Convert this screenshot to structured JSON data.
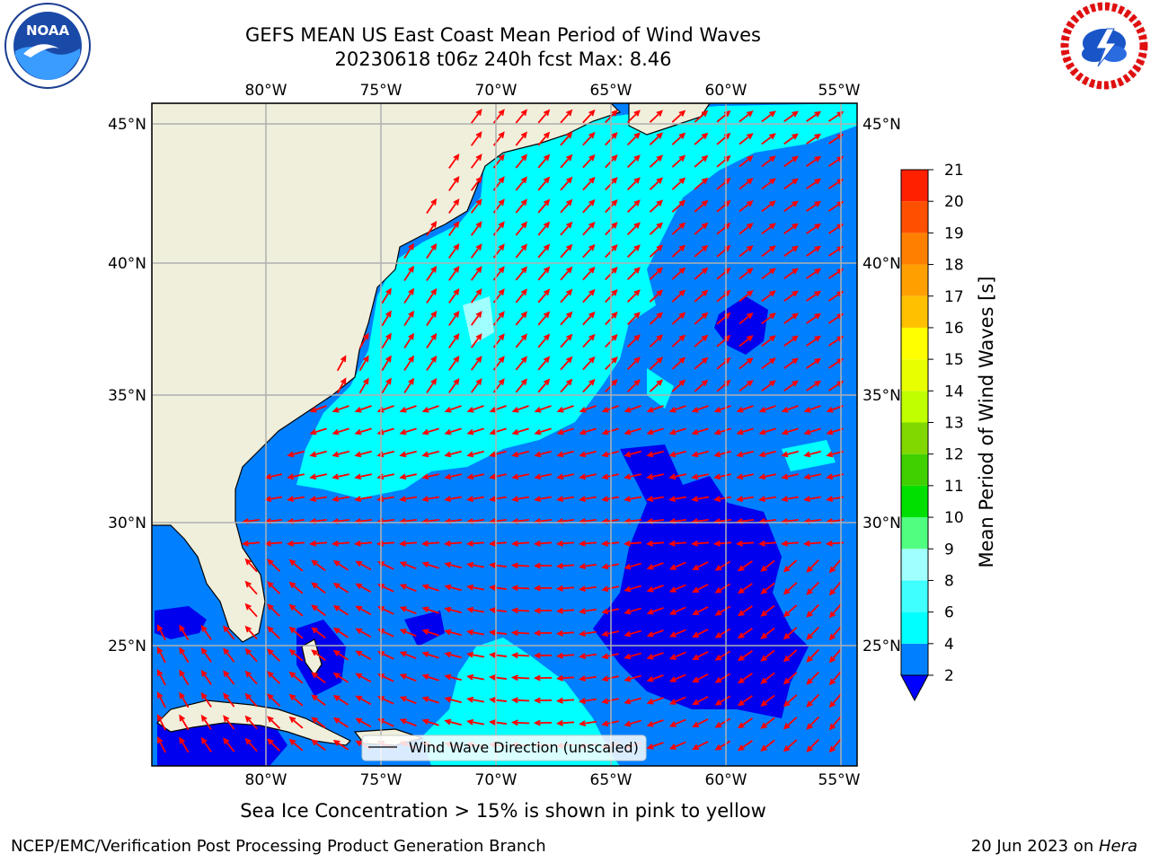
{
  "title": {
    "line1": "GEFS MEAN US East Coast Mean Period of Wind Waves",
    "line2": "20230618 t06z 240h fcst   Max: 8.46"
  },
  "logos": {
    "left": {
      "text": "NOAA",
      "icon": "noaa-logo-icon"
    },
    "right": {
      "icon": "nws-logo-icon"
    }
  },
  "map": {
    "lon_ticks": [
      "80°W",
      "75°W",
      "70°W",
      "65°W",
      "60°W",
      "55°W"
    ],
    "lat_ticks": [
      "45°N",
      "40°N",
      "35°N",
      "30°N",
      "25°N"
    ],
    "legend_label": "Wind Wave Direction (unscaled)",
    "arrow_color": "#ff0000",
    "land_color": "#efefdc"
  },
  "colorbar": {
    "label": "Mean Period of Wind Waves [s]",
    "ticks": [
      "21",
      "20",
      "19",
      "18",
      "17",
      "16",
      "15",
      "14",
      "13",
      "12",
      "11",
      "10",
      "9",
      "8",
      "6",
      "4",
      "2"
    ],
    "colors": [
      "#0000ff",
      "#0080ff",
      "#00ffff",
      "#40ffff",
      "#a0ffff",
      "#50ff80",
      "#00e000",
      "#40d000",
      "#80d800",
      "#c0ff00",
      "#e8ff00",
      "#ffff00",
      "#ffc000",
      "#ffa000",
      "#ff8000",
      "#ff5000",
      "#ff2000",
      "#ff0000"
    ]
  },
  "caption": "Sea Ice Concentration > 15% is shown in pink to yellow",
  "footer": {
    "left": "NCEP/EMC/Verification Post Processing Product Generation Branch",
    "right_prefix": "20 Jun 2023 on ",
    "right_host": "Hera"
  }
}
